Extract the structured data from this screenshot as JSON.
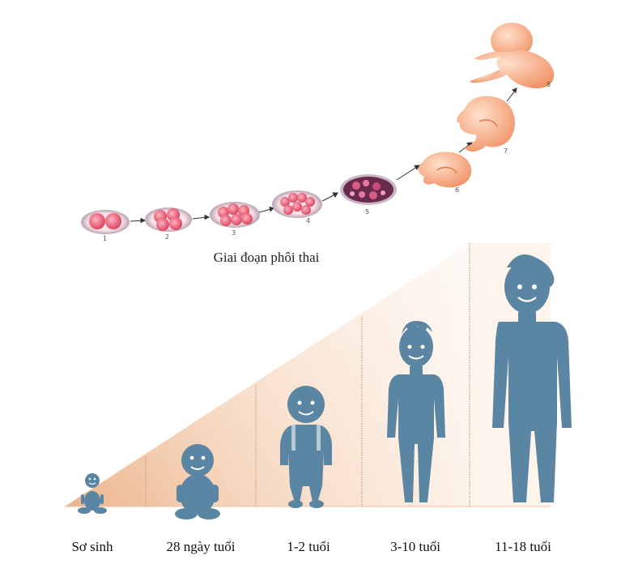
{
  "embryo": {
    "caption": "Giai đoạn phôi thai",
    "stages": [
      "1",
      "2",
      "3",
      "4",
      "5",
      "6",
      "7",
      "8"
    ]
  },
  "growth": {
    "ages": [
      "Sơ sinh",
      "28 ngày tuổi",
      "1-2 tuổi",
      "3-10 tuổi",
      "11-18 tuổi"
    ]
  },
  "colors": {
    "figure": "#5a86a3",
    "wedge_light": "#fdf2e9",
    "wedge_dark": "#ecb58c",
    "embryo_pink": "#e8607a",
    "fetus_skin": "#f6a27c"
  }
}
